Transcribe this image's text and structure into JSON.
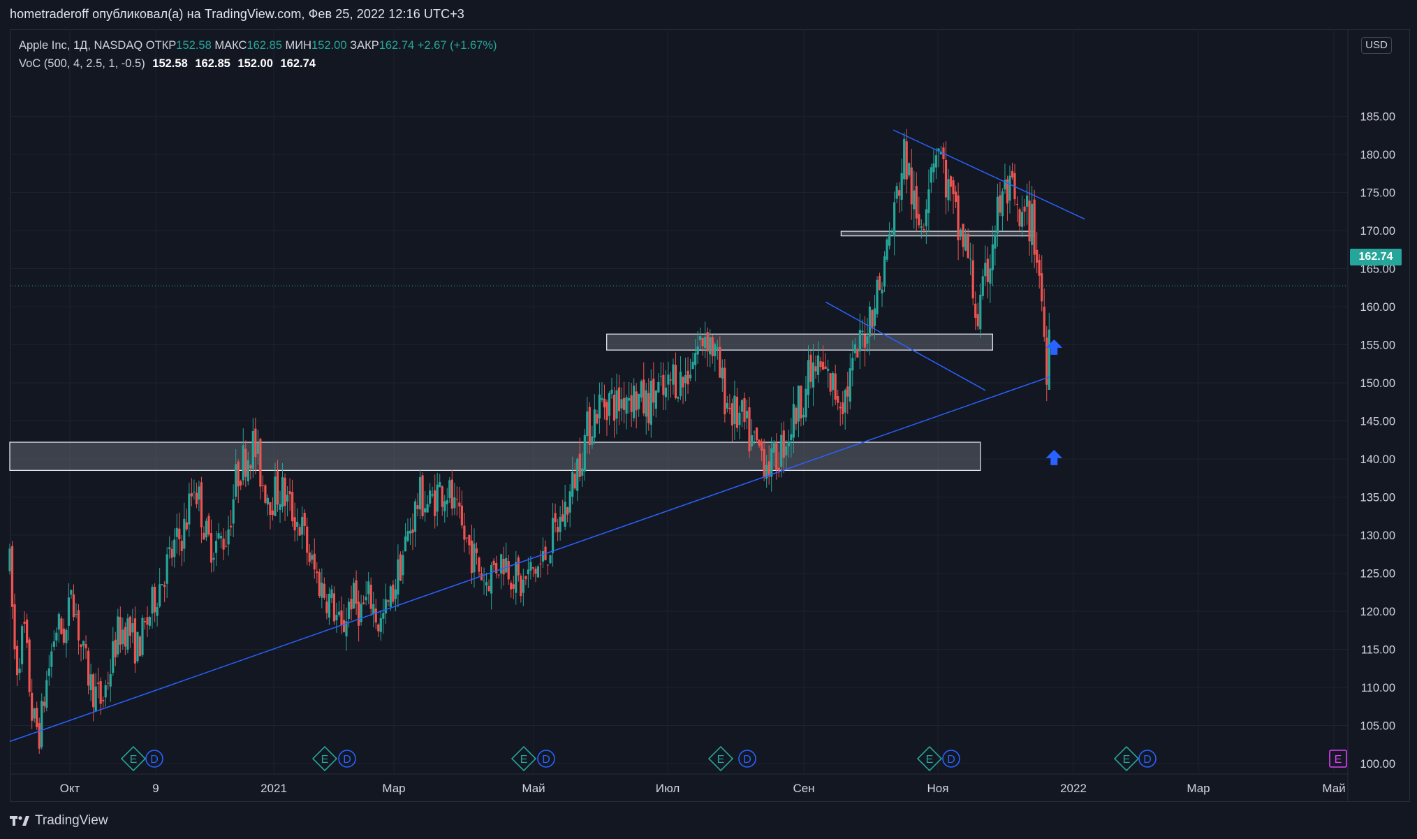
{
  "header": {
    "publish_line": "hometraderoff опубликовал(а) на TradingView.com, Фев 25, 2022 12:16 UTC+3"
  },
  "legend": {
    "symbol": "Apple Inc, 1Д, NASDAQ",
    "open_label": "ОТКР",
    "open_value": "152.58",
    "high_label": "МАКС",
    "high_value": "162.85",
    "low_label": "МИН",
    "low_value": "152.00",
    "close_label": "ЗАКР",
    "close_value": "162.74",
    "change": "+2.67 (+1.67%)",
    "indicator_name": "VoC (500, 4, 2.5, 1, -0.5)",
    "indicator_values": [
      "152.58",
      "162.85",
      "152.00",
      "162.74"
    ]
  },
  "price_axis": {
    "currency": "USD",
    "last_price_label": "162.74",
    "ticks": [
      "185.00",
      "180.00",
      "175.00",
      "170.00",
      "165.00",
      "160.00",
      "155.00",
      "150.00",
      "145.00",
      "140.00",
      "135.00",
      "130.00",
      "125.00",
      "120.00",
      "115.00",
      "110.00",
      "105.00",
      "100.00"
    ]
  },
  "time_axis": {
    "labels": [
      "Окт",
      "9",
      "2021",
      "Мар",
      "Май",
      "Июл",
      "Сен",
      "Ноя",
      "2022",
      "Мар",
      "Май"
    ]
  },
  "events": [
    {
      "type": "E",
      "color": "#26a69a"
    },
    {
      "type": "D",
      "color": "#2962ff"
    },
    {
      "type": "E",
      "color": "#26a69a"
    },
    {
      "type": "D",
      "color": "#2962ff"
    },
    {
      "type": "E",
      "color": "#26a69a"
    },
    {
      "type": "D",
      "color": "#2962ff"
    },
    {
      "type": "E",
      "color": "#26a69a"
    },
    {
      "type": "D",
      "color": "#2962ff"
    },
    {
      "type": "E",
      "color": "#26a69a"
    },
    {
      "type": "D",
      "color": "#2962ff"
    },
    {
      "type": "E",
      "color": "#26a69a"
    },
    {
      "type": "D",
      "color": "#2962ff"
    },
    {
      "type": "E",
      "color": "#e040fb"
    }
  ],
  "footer": {
    "brand": "TradingView"
  },
  "colors": {
    "up": "#26a69a",
    "down": "#ef5350",
    "trendline": "#2962ff",
    "zone_fill": "#787b86",
    "arrow": "#2962ff",
    "grid": "#1e222d"
  },
  "chart_data": {
    "type": "candlestick",
    "title": "Apple Inc, 1Д, NASDAQ",
    "ylim": [
      97.5,
      189.0
    ],
    "y_ticks": [
      100,
      105,
      110,
      115,
      120,
      125,
      130,
      135,
      140,
      145,
      150,
      155,
      160,
      165,
      170,
      175,
      180,
      185
    ],
    "x_labels": [
      "Окт",
      "9",
      "2021",
      "Мар",
      "Май",
      "Июл",
      "Сен",
      "Ноя",
      "2022",
      "Мар",
      "Май"
    ],
    "last_price": 162.74,
    "price_path": [
      [
        0,
        126
      ],
      [
        6,
        112
      ],
      [
        14,
        118
      ],
      [
        22,
        106
      ],
      [
        29,
        104
      ],
      [
        35,
        110
      ],
      [
        45,
        118
      ],
      [
        56,
        117
      ],
      [
        60,
        124
      ],
      [
        70,
        115
      ],
      [
        80,
        110
      ],
      [
        90,
        108
      ],
      [
        99,
        113
      ],
      [
        105,
        117
      ],
      [
        115,
        118
      ],
      [
        124,
        115
      ],
      [
        133,
        118
      ],
      [
        142,
        122
      ],
      [
        150,
        125
      ],
      [
        160,
        128
      ],
      [
        171,
        131
      ],
      [
        180,
        137
      ],
      [
        186,
        134
      ],
      [
        193,
        129
      ],
      [
        204,
        129
      ],
      [
        212,
        130
      ],
      [
        222,
        138
      ],
      [
        229,
        140
      ],
      [
        238,
        142
      ],
      [
        247,
        137
      ],
      [
        255,
        135
      ],
      [
        265,
        136
      ],
      [
        276,
        133
      ],
      [
        285,
        131
      ],
      [
        295,
        126
      ],
      [
        305,
        123
      ],
      [
        315,
        121
      ],
      [
        324,
        117
      ],
      [
        333,
        122
      ],
      [
        343,
        120
      ],
      [
        352,
        122
      ],
      [
        361,
        118
      ],
      [
        371,
        121
      ],
      [
        381,
        126
      ],
      [
        391,
        131
      ],
      [
        400,
        135
      ],
      [
        410,
        134
      ],
      [
        419,
        136
      ],
      [
        428,
        136
      ],
      [
        434,
        133
      ],
      [
        443,
        130
      ],
      [
        450,
        128
      ],
      [
        457,
        126
      ],
      [
        465,
        124
      ],
      [
        474,
        126
      ],
      [
        483,
        127
      ],
      [
        491,
        125
      ],
      [
        500,
        123
      ],
      [
        508,
        125
      ],
      [
        519,
        126
      ],
      [
        528,
        129
      ],
      [
        538,
        132
      ],
      [
        547,
        135
      ],
      [
        556,
        140
      ],
      [
        565,
        144
      ],
      [
        575,
        147
      ],
      [
        585,
        148
      ],
      [
        594,
        147
      ],
      [
        603,
        149
      ],
      [
        612,
        148
      ],
      [
        622,
        147
      ],
      [
        632,
        149
      ],
      [
        640,
        148
      ],
      [
        648,
        151
      ],
      [
        658,
        150
      ],
      [
        666,
        153
      ],
      [
        674,
        155
      ],
      [
        680,
        157
      ],
      [
        688,
        154
      ],
      [
        697,
        149
      ],
      [
        706,
        146
      ],
      [
        715,
        145
      ],
      [
        725,
        142
      ],
      [
        734,
        141
      ],
      [
        744,
        139
      ],
      [
        752,
        141
      ],
      [
        762,
        144
      ],
      [
        770,
        147
      ],
      [
        779,
        150
      ],
      [
        788,
        152
      ],
      [
        796,
        151
      ],
      [
        806,
        149
      ],
      [
        815,
        148
      ],
      [
        824,
        152
      ],
      [
        833,
        156
      ],
      [
        842,
        160
      ],
      [
        851,
        163
      ],
      [
        857,
        168
      ],
      [
        863,
        171
      ],
      [
        868,
        176
      ],
      [
        874,
        180
      ],
      [
        880,
        176
      ],
      [
        886,
        170
      ],
      [
        893,
        173
      ],
      [
        899,
        179
      ],
      [
        906,
        182
      ],
      [
        912,
        178
      ],
      [
        919,
        174
      ],
      [
        926,
        170
      ],
      [
        934,
        168
      ],
      [
        941,
        162
      ],
      [
        946,
        158
      ],
      [
        953,
        163
      ],
      [
        960,
        169
      ],
      [
        966,
        173
      ],
      [
        973,
        175
      ],
      [
        980,
        174
      ],
      [
        986,
        170
      ],
      [
        994,
        172
      ],
      [
        1000,
        170
      ],
      [
        1004,
        166
      ],
      [
        1008,
        161
      ],
      [
        1011,
        155
      ],
      [
        1013,
        152
      ],
      [
        1016,
        162.74
      ]
    ],
    "zones": [
      {
        "price_low": 138.5,
        "price_high": 142.2,
        "x_start_bar": 0,
        "x_end_bar": 948
      },
      {
        "price_low": 154.3,
        "price_high": 156.4,
        "x_start_bar": 583,
        "x_end_bar": 960
      },
      {
        "price_low": 169.3,
        "price_high": 169.9,
        "x_start_bar": 812,
        "x_end_bar": 1001
      }
    ],
    "trendlines": [
      {
        "points": [
          [
            0,
            102.9
          ],
          [
            1016,
            150.8
          ]
        ]
      },
      {
        "points": [
          [
            797,
            160.6
          ],
          [
            953,
            149.0
          ]
        ]
      },
      {
        "points": [
          [
            863,
            183.2
          ],
          [
            1050,
            171.5
          ]
        ]
      }
    ],
    "arrows": [
      {
        "bar": 1020,
        "price": 154.6
      },
      {
        "bar": 1020,
        "price": 140.1
      }
    ]
  }
}
